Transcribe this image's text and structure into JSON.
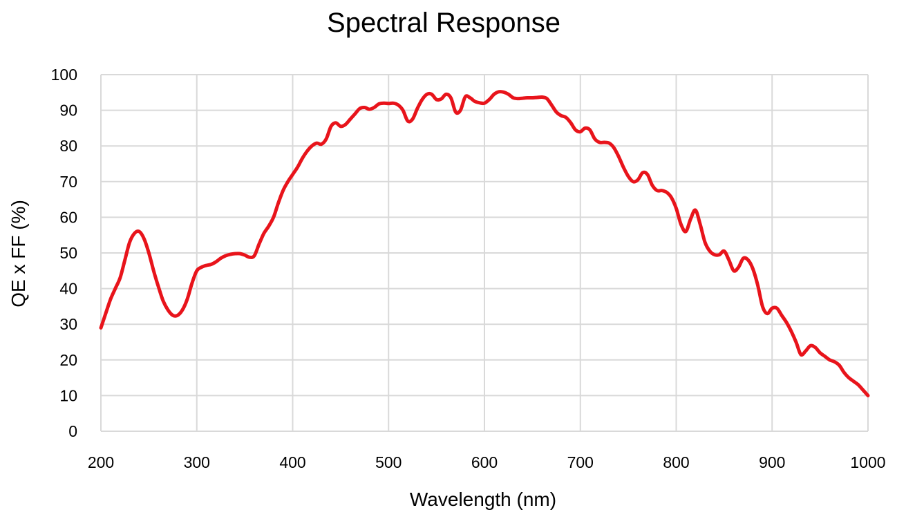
{
  "chart_data": {
    "type": "line",
    "title": "Spectral Response",
    "xlabel": "Wavelength (nm)",
    "ylabel": "QE x FF (%)",
    "xlim": [
      200,
      1000
    ],
    "ylim": [
      0,
      100
    ],
    "xticks": [
      200,
      300,
      400,
      500,
      600,
      700,
      800,
      900,
      1000
    ],
    "yticks": [
      0,
      10,
      20,
      30,
      40,
      50,
      60,
      70,
      80,
      90,
      100
    ],
    "grid": true,
    "legend": "none",
    "color": "#e8141b",
    "series": [
      {
        "x": [
          200,
          205,
          210,
          215,
          220,
          225,
          230,
          235,
          240,
          245,
          250,
          255,
          260,
          265,
          270,
          275,
          280,
          285,
          290,
          295,
          300,
          305,
          310,
          315,
          320,
          325,
          330,
          335,
          340,
          345,
          350,
          355,
          360,
          365,
          370,
          375,
          380,
          385,
          390,
          395,
          400,
          405,
          410,
          415,
          420,
          425,
          430,
          435,
          440,
          445,
          450,
          455,
          460,
          465,
          470,
          475,
          480,
          485,
          490,
          495,
          500,
          505,
          510,
          515,
          520,
          525,
          530,
          535,
          540,
          545,
          550,
          555,
          560,
          565,
          570,
          575,
          580,
          585,
          590,
          595,
          600,
          605,
          610,
          615,
          620,
          625,
          630,
          635,
          640,
          645,
          650,
          655,
          660,
          665,
          670,
          675,
          680,
          685,
          690,
          695,
          700,
          705,
          710,
          715,
          720,
          725,
          730,
          735,
          740,
          745,
          750,
          755,
          760,
          765,
          770,
          775,
          780,
          785,
          790,
          795,
          800,
          805,
          810,
          815,
          820,
          825,
          830,
          835,
          840,
          845,
          850,
          855,
          860,
          865,
          870,
          875,
          880,
          885,
          890,
          895,
          900,
          905,
          910,
          915,
          920,
          925,
          930,
          935,
          940,
          945,
          950,
          955,
          960,
          965,
          970,
          975,
          980,
          985,
          990,
          995,
          1000
        ],
        "y": [
          29,
          33,
          37,
          40,
          43,
          48,
          53,
          55.5,
          56,
          54,
          50,
          45,
          40.5,
          36.5,
          34,
          32.5,
          32.5,
          34,
          37,
          41.5,
          45,
          46,
          46.5,
          46.8,
          47.5,
          48.5,
          49.2,
          49.6,
          49.8,
          49.8,
          49.4,
          48.8,
          49.2,
          52.5,
          55.5,
          57.5,
          60,
          64,
          67.5,
          70,
          72,
          74,
          76.5,
          78.5,
          80,
          80.8,
          80.5,
          82,
          85.5,
          86.5,
          85.5,
          86,
          87.5,
          89,
          90.5,
          90.8,
          90.3,
          90.8,
          91.8,
          92,
          91.9,
          92,
          91.5,
          90,
          87,
          87.5,
          90.5,
          93,
          94.5,
          94.5,
          93,
          93.2,
          94.5,
          93.5,
          89.5,
          90,
          93.8,
          93.5,
          92.5,
          92.1,
          92,
          93,
          94.5,
          95.2,
          95.1,
          94.5,
          93.5,
          93.3,
          93.4,
          93.5,
          93.5,
          93.6,
          93.7,
          93.3,
          91.5,
          89.5,
          88.5,
          88,
          86.5,
          84.5,
          84,
          85,
          84.5,
          82,
          81,
          81,
          80.8,
          79.5,
          77,
          74,
          71.5,
          70,
          70.5,
          72.5,
          72,
          69,
          67.5,
          67.5,
          67,
          65.5,
          62.5,
          58,
          56,
          59.5,
          62,
          58,
          53,
          50.5,
          49.5,
          49.5,
          50.5,
          48,
          45,
          46,
          48.5,
          48,
          45.5,
          41,
          35,
          33,
          34.5,
          34.5,
          32.5,
          30.5,
          28,
          25,
          21.5,
          22.5,
          24,
          23.5,
          22,
          21,
          20,
          19.5,
          18.5,
          16.5,
          15,
          14,
          13,
          11.5,
          10
        ]
      }
    ]
  }
}
